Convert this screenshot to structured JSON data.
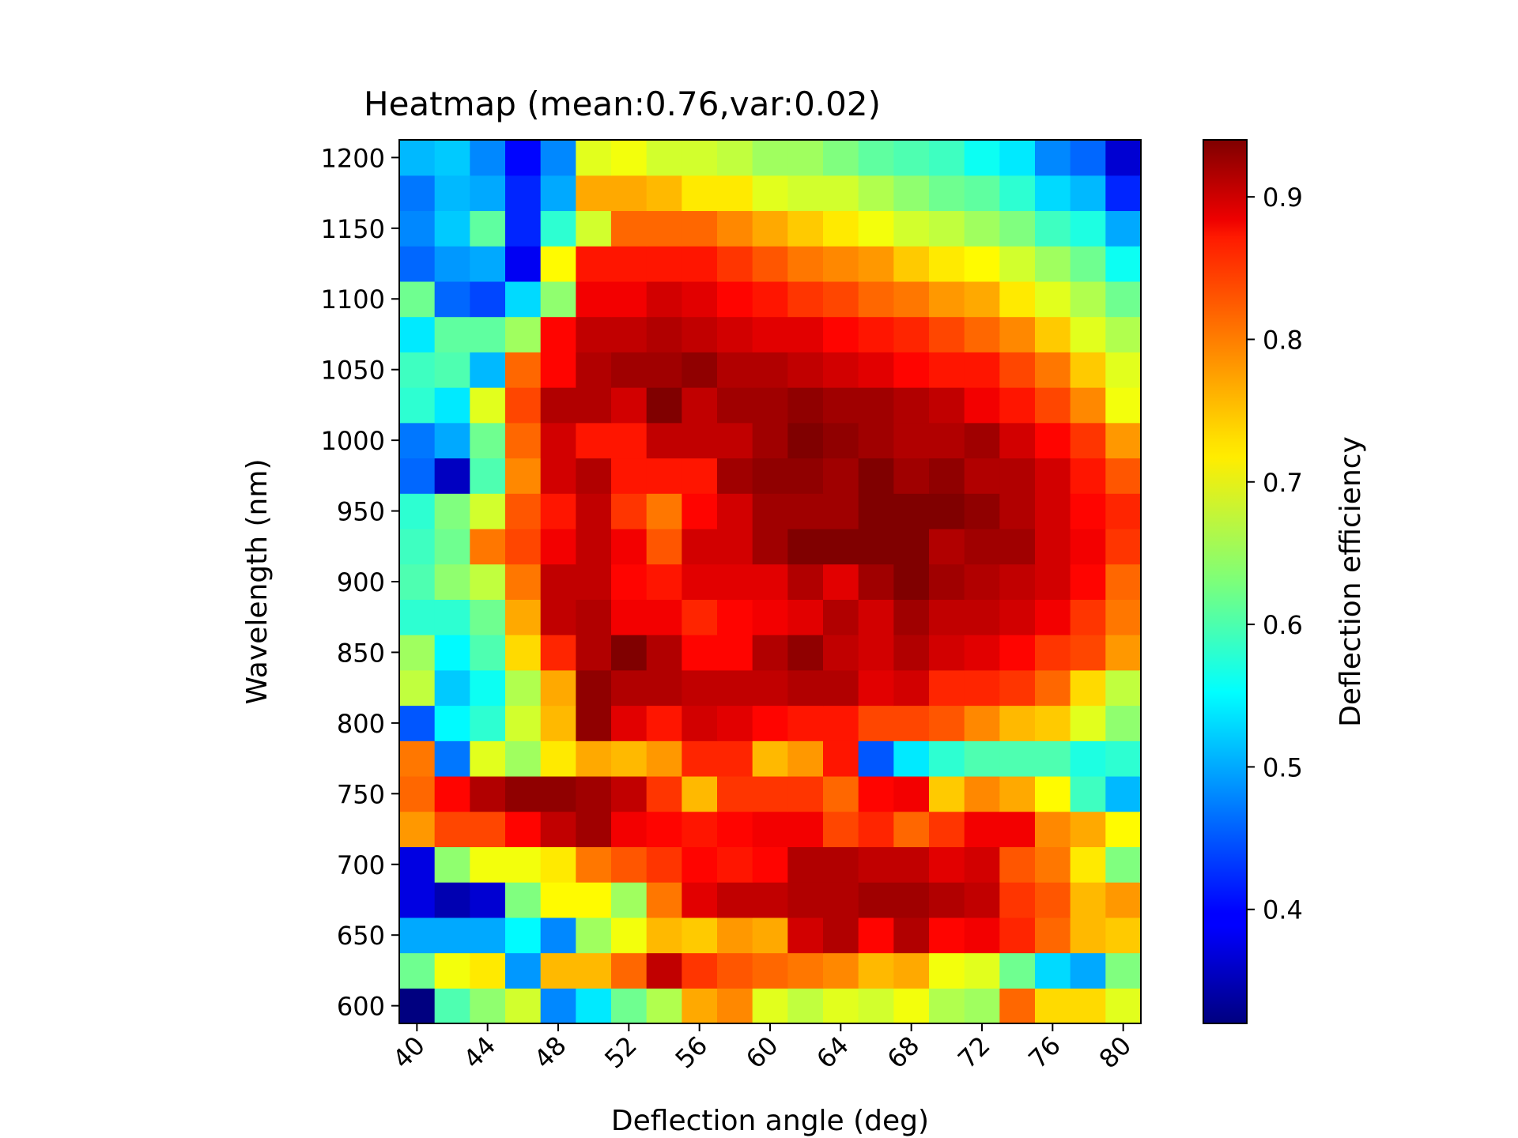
{
  "chart_data": {
    "type": "heatmap",
    "title": "Heatmap (mean:0.76,var:0.02)",
    "xlabel": "Deflection angle (deg)",
    "ylabel": "Wavelength (nm)",
    "colorbar_label": "Deflection efficiency",
    "colormap": "jet",
    "color_range": [
      0.32,
      0.94
    ],
    "x": [
      40,
      42,
      44,
      46,
      48,
      50,
      52,
      54,
      56,
      58,
      60,
      62,
      64,
      66,
      68,
      70,
      72,
      74,
      76,
      78,
      80
    ],
    "y": [
      600,
      625,
      650,
      675,
      700,
      725,
      750,
      775,
      800,
      825,
      850,
      875,
      900,
      925,
      950,
      975,
      1000,
      1025,
      1050,
      1075,
      1100,
      1125,
      1150,
      1175,
      1200
    ],
    "x_ticks": [
      "40",
      "44",
      "48",
      "52",
      "56",
      "60",
      "64",
      "68",
      "72",
      "76",
      "80"
    ],
    "y_ticks": [
      "600",
      "650",
      "700",
      "750",
      "800",
      "850",
      "900",
      "950",
      "1000",
      "1050",
      "1100",
      "1150",
      "1200"
    ],
    "colorbar_ticks": [
      "0.4",
      "0.5",
      "0.6",
      "0.7",
      "0.8",
      "0.9"
    ],
    "values": [
      [
        0.32,
        0.6,
        0.64,
        0.68,
        0.48,
        0.54,
        0.62,
        0.66,
        0.76,
        0.78,
        0.69,
        0.67,
        0.69,
        0.68,
        0.7,
        0.66,
        0.65,
        0.8,
        0.73,
        0.73,
        0.69
      ],
      [
        0.62,
        0.7,
        0.72,
        0.49,
        0.75,
        0.75,
        0.8,
        0.9,
        0.83,
        0.81,
        0.8,
        0.79,
        0.78,
        0.75,
        0.76,
        0.7,
        0.69,
        0.62,
        0.53,
        0.5,
        0.63
      ],
      [
        0.5,
        0.5,
        0.5,
        0.55,
        0.48,
        0.65,
        0.7,
        0.75,
        0.74,
        0.77,
        0.76,
        0.89,
        0.91,
        0.86,
        0.91,
        0.86,
        0.87,
        0.84,
        0.8,
        0.75,
        0.74
      ],
      [
        0.38,
        0.35,
        0.37,
        0.63,
        0.71,
        0.71,
        0.65,
        0.79,
        0.88,
        0.9,
        0.9,
        0.91,
        0.91,
        0.92,
        0.92,
        0.91,
        0.9,
        0.83,
        0.81,
        0.75,
        0.77
      ],
      [
        0.38,
        0.64,
        0.7,
        0.7,
        0.72,
        0.79,
        0.81,
        0.83,
        0.86,
        0.85,
        0.86,
        0.91,
        0.91,
        0.9,
        0.9,
        0.88,
        0.89,
        0.81,
        0.79,
        0.72,
        0.63
      ],
      [
        0.77,
        0.82,
        0.82,
        0.86,
        0.9,
        0.92,
        0.87,
        0.86,
        0.85,
        0.86,
        0.87,
        0.87,
        0.82,
        0.84,
        0.8,
        0.83,
        0.87,
        0.87,
        0.78,
        0.76,
        0.71
      ],
      [
        0.8,
        0.86,
        0.91,
        0.93,
        0.93,
        0.92,
        0.9,
        0.83,
        0.75,
        0.83,
        0.83,
        0.83,
        0.8,
        0.86,
        0.87,
        0.74,
        0.78,
        0.76,
        0.71,
        0.59,
        0.51
      ],
      [
        0.79,
        0.47,
        0.69,
        0.65,
        0.72,
        0.76,
        0.75,
        0.77,
        0.84,
        0.84,
        0.75,
        0.77,
        0.85,
        0.45,
        0.54,
        0.58,
        0.6,
        0.6,
        0.6,
        0.57,
        0.58
      ],
      [
        0.45,
        0.55,
        0.58,
        0.68,
        0.75,
        0.93,
        0.88,
        0.85,
        0.89,
        0.88,
        0.86,
        0.85,
        0.85,
        0.82,
        0.82,
        0.81,
        0.78,
        0.75,
        0.74,
        0.69,
        0.64
      ],
      [
        0.67,
        0.52,
        0.56,
        0.66,
        0.76,
        0.93,
        0.91,
        0.91,
        0.9,
        0.9,
        0.9,
        0.91,
        0.91,
        0.88,
        0.89,
        0.84,
        0.84,
        0.83,
        0.8,
        0.73,
        0.67
      ],
      [
        0.65,
        0.55,
        0.6,
        0.73,
        0.84,
        0.91,
        0.94,
        0.91,
        0.86,
        0.86,
        0.91,
        0.93,
        0.9,
        0.89,
        0.91,
        0.89,
        0.88,
        0.86,
        0.83,
        0.82,
        0.77
      ],
      [
        0.58,
        0.58,
        0.62,
        0.76,
        0.9,
        0.91,
        0.87,
        0.87,
        0.84,
        0.86,
        0.87,
        0.88,
        0.91,
        0.89,
        0.92,
        0.9,
        0.9,
        0.89,
        0.87,
        0.83,
        0.79
      ],
      [
        0.6,
        0.64,
        0.67,
        0.79,
        0.9,
        0.9,
        0.86,
        0.85,
        0.88,
        0.88,
        0.88,
        0.91,
        0.88,
        0.92,
        0.94,
        0.92,
        0.91,
        0.9,
        0.89,
        0.86,
        0.8
      ],
      [
        0.59,
        0.62,
        0.79,
        0.82,
        0.87,
        0.9,
        0.87,
        0.81,
        0.89,
        0.89,
        0.92,
        0.94,
        0.94,
        0.94,
        0.94,
        0.91,
        0.92,
        0.92,
        0.89,
        0.87,
        0.83
      ],
      [
        0.58,
        0.63,
        0.68,
        0.81,
        0.85,
        0.9,
        0.83,
        0.79,
        0.86,
        0.89,
        0.92,
        0.92,
        0.92,
        0.94,
        0.94,
        0.94,
        0.93,
        0.91,
        0.89,
        0.86,
        0.84
      ],
      [
        0.46,
        0.36,
        0.6,
        0.78,
        0.89,
        0.91,
        0.85,
        0.85,
        0.85,
        0.92,
        0.93,
        0.93,
        0.92,
        0.94,
        0.92,
        0.93,
        0.91,
        0.91,
        0.89,
        0.85,
        0.81
      ],
      [
        0.47,
        0.5,
        0.62,
        0.8,
        0.89,
        0.85,
        0.85,
        0.9,
        0.9,
        0.9,
        0.92,
        0.94,
        0.93,
        0.92,
        0.91,
        0.91,
        0.92,
        0.89,
        0.86,
        0.83,
        0.77
      ],
      [
        0.58,
        0.54,
        0.69,
        0.82,
        0.91,
        0.91,
        0.89,
        0.94,
        0.9,
        0.92,
        0.92,
        0.93,
        0.92,
        0.92,
        0.91,
        0.9,
        0.87,
        0.85,
        0.82,
        0.78,
        0.7
      ],
      [
        0.59,
        0.6,
        0.51,
        0.8,
        0.86,
        0.91,
        0.92,
        0.92,
        0.93,
        0.91,
        0.91,
        0.9,
        0.89,
        0.88,
        0.86,
        0.85,
        0.85,
        0.82,
        0.79,
        0.74,
        0.69
      ],
      [
        0.54,
        0.61,
        0.61,
        0.65,
        0.86,
        0.9,
        0.9,
        0.91,
        0.9,
        0.89,
        0.88,
        0.88,
        0.86,
        0.85,
        0.84,
        0.82,
        0.8,
        0.78,
        0.74,
        0.69,
        0.66
      ],
      [
        0.62,
        0.46,
        0.44,
        0.53,
        0.64,
        0.87,
        0.87,
        0.89,
        0.88,
        0.86,
        0.85,
        0.83,
        0.82,
        0.8,
        0.79,
        0.77,
        0.76,
        0.72,
        0.69,
        0.66,
        0.62
      ],
      [
        0.46,
        0.49,
        0.5,
        0.39,
        0.71,
        0.85,
        0.85,
        0.85,
        0.85,
        0.83,
        0.81,
        0.79,
        0.78,
        0.77,
        0.74,
        0.72,
        0.71,
        0.68,
        0.65,
        0.62,
        0.56
      ],
      [
        0.48,
        0.52,
        0.61,
        0.42,
        0.58,
        0.68,
        0.8,
        0.8,
        0.8,
        0.78,
        0.76,
        0.74,
        0.72,
        0.7,
        0.68,
        0.67,
        0.65,
        0.63,
        0.59,
        0.57,
        0.5
      ],
      [
        0.47,
        0.51,
        0.5,
        0.42,
        0.5,
        0.76,
        0.76,
        0.75,
        0.72,
        0.72,
        0.69,
        0.68,
        0.68,
        0.66,
        0.64,
        0.62,
        0.61,
        0.58,
        0.53,
        0.51,
        0.42
      ],
      [
        0.51,
        0.52,
        0.48,
        0.4,
        0.48,
        0.69,
        0.7,
        0.68,
        0.68,
        0.67,
        0.65,
        0.65,
        0.63,
        0.61,
        0.6,
        0.59,
        0.56,
        0.54,
        0.48,
        0.46,
        0.37
      ]
    ]
  }
}
